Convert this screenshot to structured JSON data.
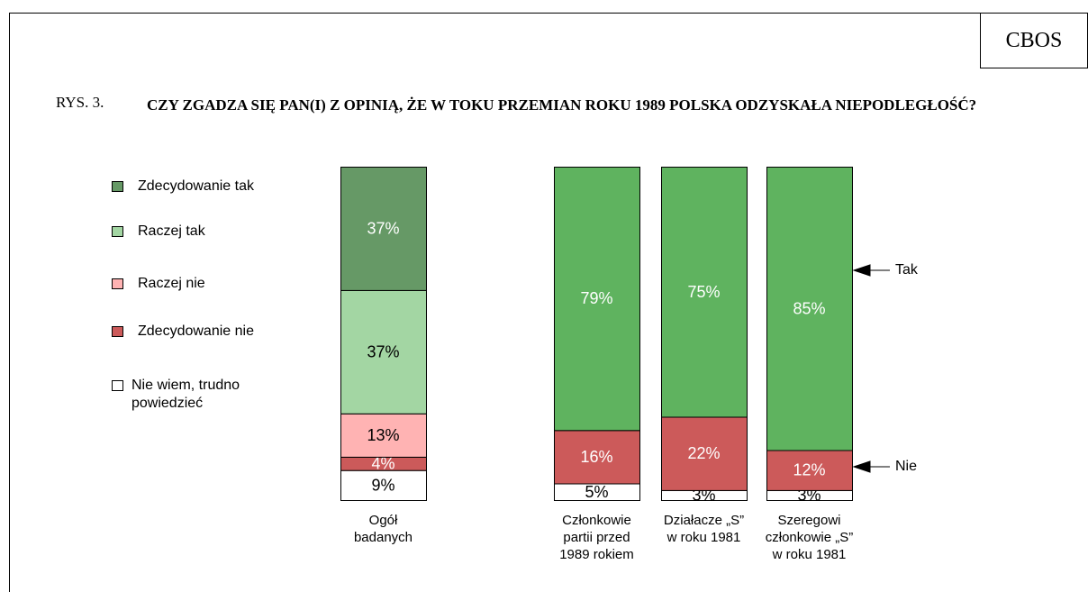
{
  "header": "CBOS",
  "figure_label": "RYS. 3.",
  "title": "CZY ZGADZA SIĘ PAN(I) Z OPINIĄ, ŻE W TOKU PRZEMIAN ROKU 1989 POLSKA ODZYSKAŁA NIEPODLEGŁOŚĆ?",
  "chart_data": [
    {
      "type": "stacked_bar",
      "categories": [
        "Ogół\nbadanych"
      ],
      "legend": true,
      "ylim": [
        0,
        100
      ],
      "series": [
        {
          "name": "Zdecydowanie tak",
          "color": "#669966",
          "label_color": "#ffffff",
          "values": [
            37
          ],
          "value_labels": [
            "37%"
          ]
        },
        {
          "name": "Raczej tak",
          "color": "#a3d6a3",
          "label_color": "#000000",
          "values": [
            37
          ],
          "value_labels": [
            "37%"
          ]
        },
        {
          "name": "Raczej nie",
          "color": "#ffb3b3",
          "label_color": "#000000",
          "values": [
            13
          ],
          "value_labels": [
            "13%"
          ]
        },
        {
          "name": "Zdecydowanie nie",
          "color": "#cc5a5a",
          "label_color": "#ffffff",
          "values": [
            4
          ],
          "value_labels": [
            "4%"
          ]
        },
        {
          "name": "Nie wiem, trudno\npowiedzieć",
          "color": "#ffffff",
          "label_color": "#000000",
          "values": [
            9
          ],
          "value_labels": [
            "9%"
          ]
        }
      ]
    },
    {
      "type": "stacked_bar",
      "categories": [
        "Członkowie\npartii przed\n1989 rokiem",
        "Działacze „S”\nw roku 1981",
        "Szeregowi\nczłonkowie „S”\nw roku 1981"
      ],
      "legend": false,
      "ylim": [
        0,
        100
      ],
      "series": [
        {
          "name": "Tak",
          "color": "#5fb35f",
          "label_color": "#ffffff",
          "values": [
            79,
            75,
            85
          ],
          "value_labels": [
            "79%",
            "75%",
            "85%"
          ]
        },
        {
          "name": "Nie",
          "color": "#cc5a5a",
          "label_color": "#ffffff",
          "values": [
            16,
            22,
            12
          ],
          "value_labels": [
            "16%",
            "22%",
            "12%"
          ]
        },
        {
          "color": "#ffffff",
          "label_color": "#000000",
          "values": [
            5,
            3,
            3
          ],
          "value_labels": [
            "5%",
            "3%",
            "3%"
          ]
        }
      ]
    }
  ]
}
